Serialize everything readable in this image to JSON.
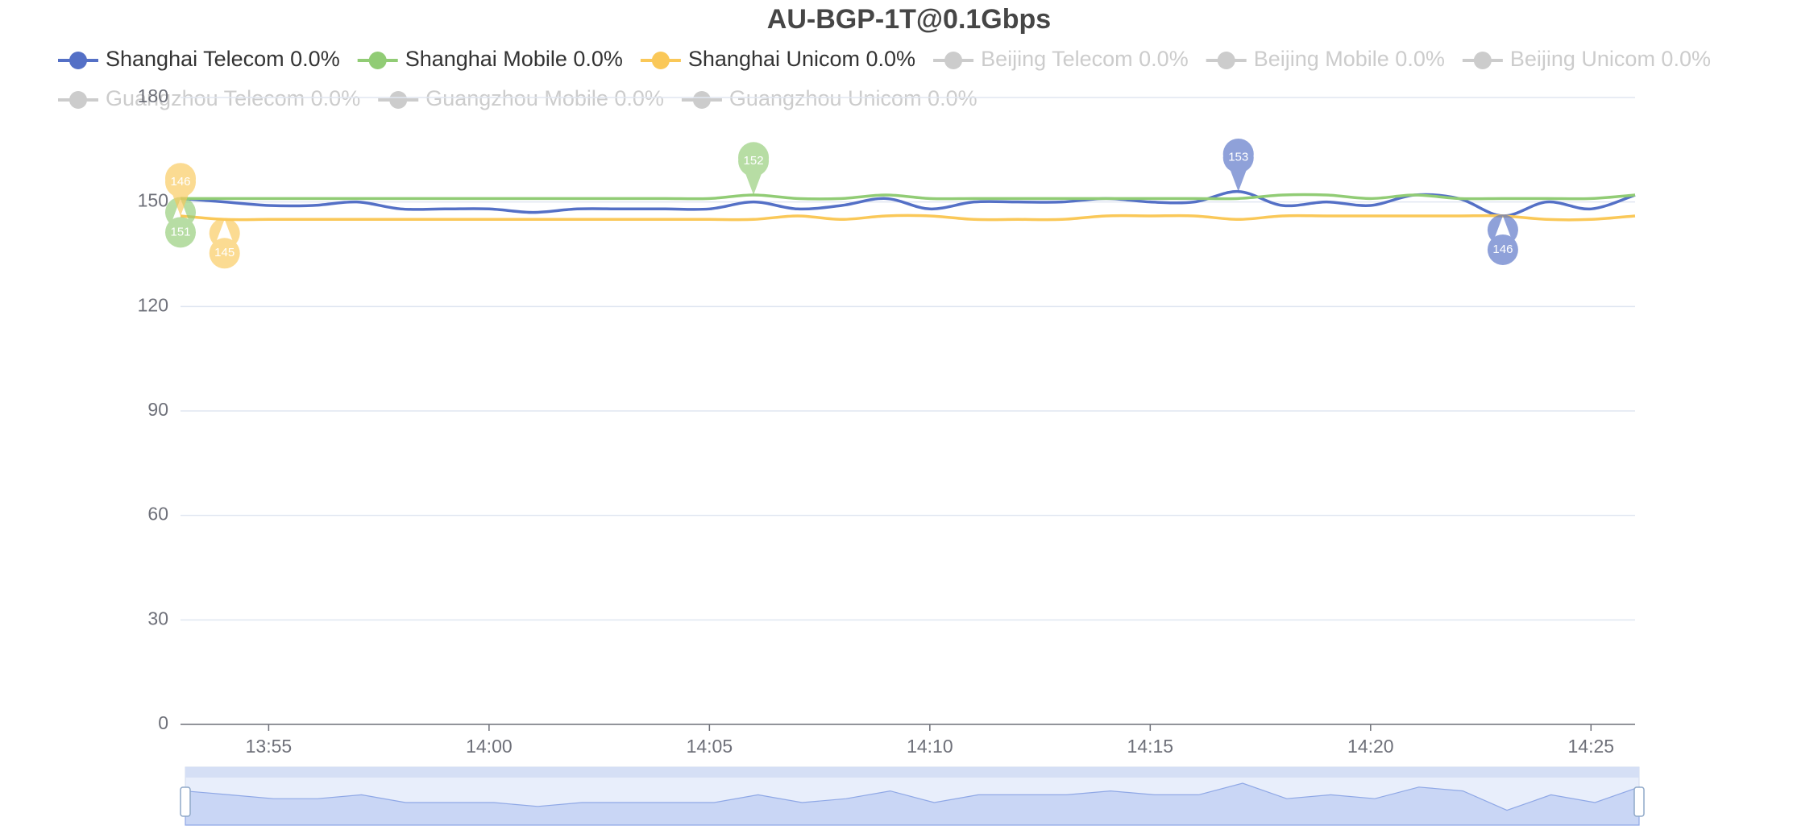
{
  "chart_data": {
    "type": "line",
    "title": "AU-BGP-1T@0.1Gbps",
    "categories": [
      null,
      null,
      "13:55",
      null,
      null,
      null,
      null,
      "14:00",
      null,
      null,
      null,
      null,
      "14:05",
      null,
      null,
      null,
      null,
      "14:10",
      null,
      null,
      null,
      null,
      "14:15",
      null,
      null,
      null,
      null,
      "14:20",
      null,
      null,
      null,
      null,
      "14:25",
      null
    ],
    "ylim": [
      0,
      180
    ],
    "yticks": [
      0,
      30,
      60,
      90,
      120,
      150,
      180
    ],
    "grid": true,
    "smooth": true,
    "mark_max_min": true,
    "data_zoom": true,
    "inactive_color": "#cccccc",
    "series": [
      {
        "name": "Shanghai Telecom 0.0%",
        "color": "#5470c6",
        "visible": true,
        "values": [
          151,
          150,
          149,
          149,
          150,
          148,
          148,
          148,
          147,
          148,
          148,
          148,
          148,
          150,
          148,
          149,
          151,
          148,
          150,
          150,
          150,
          151,
          150,
          150,
          153,
          149,
          150,
          149,
          152,
          151,
          146,
          150,
          148,
          152
        ]
      },
      {
        "name": "Shanghai Mobile 0.0%",
        "color": "#91cc75",
        "visible": true,
        "values": [
          151,
          151,
          151,
          151,
          151,
          151,
          151,
          151,
          151,
          151,
          151,
          151,
          151,
          152,
          151,
          151,
          152,
          151,
          151,
          151,
          151,
          151,
          151,
          151,
          151,
          152,
          152,
          151,
          152,
          151,
          151,
          151,
          151,
          152
        ]
      },
      {
        "name": "Shanghai Unicom 0.0%",
        "color": "#fac858",
        "visible": true,
        "values": [
          146,
          145,
          145,
          145,
          145,
          145,
          145,
          145,
          145,
          145,
          145,
          145,
          145,
          145,
          146,
          145,
          146,
          146,
          145,
          145,
          145,
          146,
          146,
          146,
          145,
          146,
          146,
          146,
          146,
          146,
          146,
          145,
          145,
          146
        ]
      },
      {
        "name": "Beijing Telecom 0.0%",
        "visible": false
      },
      {
        "name": "Beijing Mobile 0.0%",
        "visible": false
      },
      {
        "name": "Beijing Unicom 0.0%",
        "visible": false
      },
      {
        "name": "Guangzhou Telecom 0.0%",
        "visible": false
      },
      {
        "name": "Guangzhou Mobile 0.0%",
        "visible": false
      },
      {
        "name": "Guangzhou Unicom 0.0%",
        "visible": false
      }
    ]
  }
}
